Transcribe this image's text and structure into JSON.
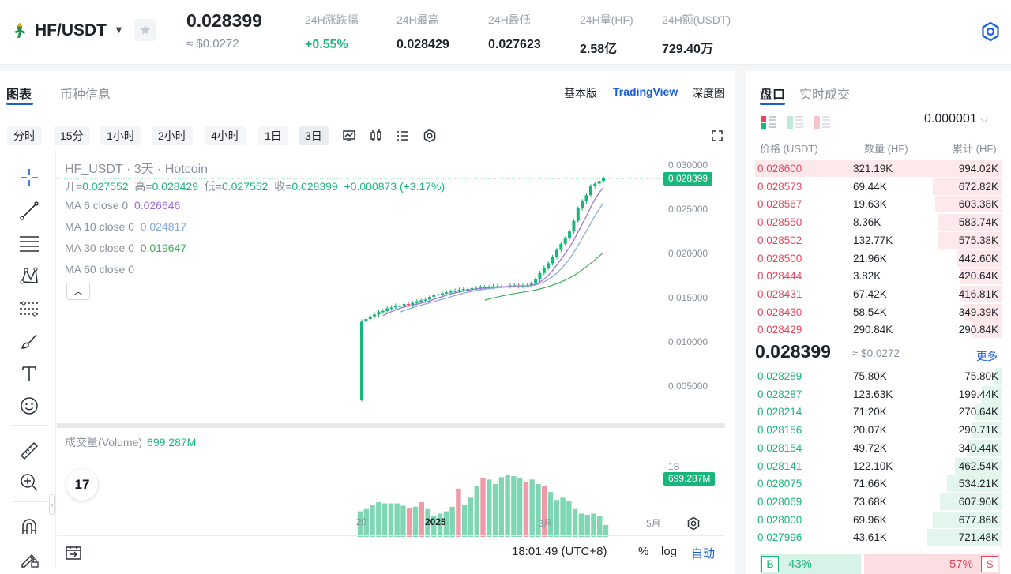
{
  "header": {
    "pair": "HF/USDT",
    "last_price": "0.028399",
    "last_price_usd": "≈ $0.0272",
    "stats": [
      {
        "label": "24H涨跌幅",
        "value": "+0.55%",
        "up": true
      },
      {
        "label": "24H最高",
        "value": "0.028429"
      },
      {
        "label": "24H最低",
        "value": "0.027623"
      },
      {
        "label": "24H量(HF)",
        "value": "2.58亿"
      },
      {
        "label": "24H额(USDT)",
        "value": "729.40万"
      }
    ]
  },
  "chart_panel": {
    "tabs": [
      "图表",
      "币种信息"
    ],
    "views": [
      "基本版",
      "TradingView",
      "深度图"
    ],
    "timeframes": [
      "分时",
      "15分",
      "1小时",
      "2小时",
      "4小时",
      "1日",
      "3日"
    ],
    "active_timeframe": "3日",
    "legend": {
      "title": "HF_USDT · 3天 · Hotcoin",
      "open_label": "开=",
      "open": "0.027552",
      "high_label": "高=",
      "high": "0.028429",
      "low_label": "低=",
      "low": "0.027552",
      "close_label": "收=",
      "close": "0.028399",
      "change": "+0.000873 (+3.17%)",
      "ma": [
        {
          "label": "MA 6 close 0",
          "value": "0.026646",
          "color": "#9b6dd1"
        },
        {
          "label": "MA 10 close 0",
          "value": "0.024817",
          "color": "#7fa8dc"
        },
        {
          "label": "MA 30 close 0",
          "value": "0.019647",
          "color": "#3fae5a"
        },
        {
          "label": "MA 60 close 0",
          "value": "",
          "color": "#8a919c"
        }
      ]
    },
    "price_axis": [
      "0.030000",
      "0.025000",
      "0.020000",
      "0.015000",
      "0.010000",
      "0.005000"
    ],
    "current_price_tag": "0.028399",
    "volume_legend": "成交量(Volume)",
    "volume_value": "699.287M",
    "volume_axis_label": "1B",
    "volume_tag": "699.287M",
    "time_axis": [
      "20",
      "2025",
      "3月",
      "5月"
    ],
    "bottom": {
      "time": "18:01:49 (UTC+8)",
      "percent": "%",
      "log": "log",
      "auto": "自动"
    },
    "colors": {
      "up": "#19b67c",
      "down": "#e8455c",
      "accent": "#1b5dd6"
    }
  },
  "chart_data": {
    "type": "candlestick",
    "title": "HF_USDT · 3天 · Hotcoin",
    "ylim": [
      0,
      0.0315
    ],
    "close_series": [
      0.0122,
      0.0125,
      0.0128,
      0.013,
      0.0133,
      0.0134,
      0.0137,
      0.0138,
      0.014,
      0.014,
      0.0142,
      0.0141,
      0.0143,
      0.0145,
      0.0146,
      0.0147,
      0.015,
      0.0152,
      0.0153,
      0.0154,
      0.0155,
      0.0156,
      0.0157,
      0.0158,
      0.0159,
      0.0159,
      0.016,
      0.016,
      0.0161,
      0.0161,
      0.0161,
      0.0162,
      0.0162,
      0.0162,
      0.0162,
      0.0163,
      0.0163,
      0.0162,
      0.0163,
      0.0163,
      0.0165,
      0.017,
      0.0177,
      0.0183,
      0.0188,
      0.0195,
      0.0203,
      0.021,
      0.0216,
      0.0224,
      0.0236,
      0.025,
      0.0258,
      0.0265,
      0.0275,
      0.0278,
      0.0281,
      0.0284
    ],
    "first_open": 0.0034,
    "volume_series": [
      0.6,
      0.62,
      0.66,
      0.68,
      0.67,
      0.67,
      0.67,
      0.65,
      0.63,
      0.64,
      0.68,
      0.62,
      0.56,
      0.58,
      0.6,
      0.64,
      0.8,
      0.66,
      0.72,
      0.82,
      0.89,
      0.88,
      0.84,
      0.9,
      0.92,
      0.91,
      0.89,
      0.86,
      0.88,
      0.84,
      0.82,
      0.77,
      0.7,
      0.72,
      0.69,
      0.62,
      0.58,
      0.57,
      0.58,
      0.56,
      0.48
    ],
    "volume_down_idx": [
      8,
      10,
      16,
      20,
      27,
      30
    ]
  },
  "order_book": {
    "tabs": [
      "盘口",
      "实时成交"
    ],
    "precision": "0.000001",
    "headers": [
      "价格 (USDT)",
      "数量 (HF)",
      "累计 (HF)"
    ],
    "asks": [
      {
        "price": "0.028600",
        "qty": "321.19K",
        "total": "994.02K",
        "depth": 1.0
      },
      {
        "price": "0.028573",
        "qty": "69.44K",
        "total": "672.82K",
        "depth": 0.28
      },
      {
        "price": "0.028567",
        "qty": "19.63K",
        "total": "603.38K",
        "depth": 0.27
      },
      {
        "price": "0.028550",
        "qty": "8.36K",
        "total": "583.74K",
        "depth": 0.26
      },
      {
        "price": "0.028502",
        "qty": "132.77K",
        "total": "575.38K",
        "depth": 0.26
      },
      {
        "price": "0.028500",
        "qty": "21.96K",
        "total": "442.60K",
        "depth": 0.18
      },
      {
        "price": "0.028444",
        "qty": "3.82K",
        "total": "420.64K",
        "depth": 0.17
      },
      {
        "price": "0.028431",
        "qty": "67.42K",
        "total": "416.81K",
        "depth": 0.17
      },
      {
        "price": "0.028430",
        "qty": "58.54K",
        "total": "349.39K",
        "depth": 0.15
      },
      {
        "price": "0.028429",
        "qty": "290.84K",
        "total": "290.84K",
        "depth": 0.12
      }
    ],
    "mid_price": "0.028399",
    "mid_usd": "≈ $0.0272",
    "more": "更多",
    "bids": [
      {
        "price": "0.028289",
        "qty": "75.80K",
        "total": "75.80K",
        "depth": 0.03
      },
      {
        "price": "0.028287",
        "qty": "123.63K",
        "total": "199.44K",
        "depth": 0.08
      },
      {
        "price": "0.028214",
        "qty": "71.20K",
        "total": "270.64K",
        "depth": 0.11
      },
      {
        "price": "0.028156",
        "qty": "20.07K",
        "total": "290.71K",
        "depth": 0.12
      },
      {
        "price": "0.028154",
        "qty": "49.72K",
        "total": "340.44K",
        "depth": 0.14
      },
      {
        "price": "0.028141",
        "qty": "122.10K",
        "total": "462.54K",
        "depth": 0.19
      },
      {
        "price": "0.028075",
        "qty": "71.66K",
        "total": "534.21K",
        "depth": 0.22
      },
      {
        "price": "0.028069",
        "qty": "73.68K",
        "total": "607.90K",
        "depth": 0.25
      },
      {
        "price": "0.028000",
        "qty": "69.96K",
        "total": "677.86K",
        "depth": 0.28
      },
      {
        "price": "0.027996",
        "qty": "43.61K",
        "total": "721.48K",
        "depth": 0.3
      }
    ],
    "ratio": {
      "buy_label": "B",
      "buy_pct": "43%",
      "sell_label": "S",
      "sell_pct": "57%"
    }
  }
}
